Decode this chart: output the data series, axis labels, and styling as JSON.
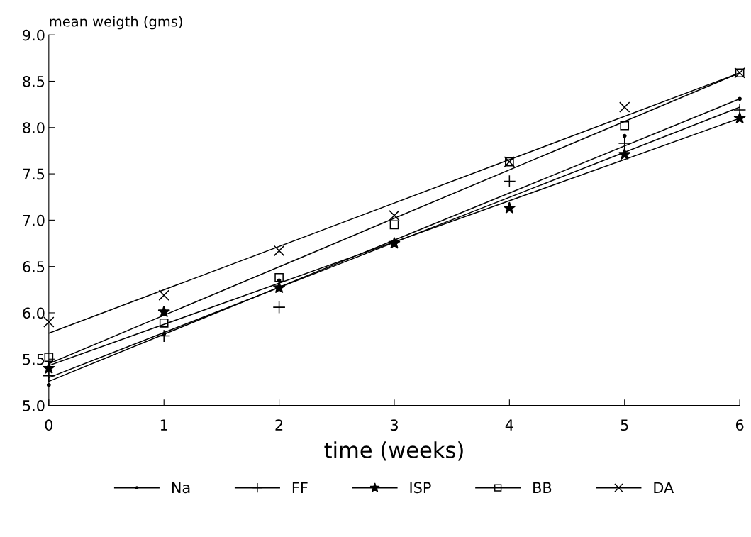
{
  "chart_data": {
    "type": "scatter",
    "xlabel": "time (weeks)",
    "ylabel": "mean weigth (gms)",
    "x": [
      0,
      1,
      2,
      3,
      4,
      5,
      6
    ],
    "xlim": [
      0,
      6
    ],
    "xticks": [
      0,
      1,
      2,
      3,
      4,
      5,
      6
    ],
    "ylim": [
      5,
      9
    ],
    "yticks": [
      {
        "value": 5,
        "label": "5.0"
      },
      {
        "value": 5.5,
        "label": "5.5"
      },
      {
        "value": 6,
        "label": "6.0"
      },
      {
        "value": 6.5,
        "label": "6.5"
      },
      {
        "value": 7,
        "label": "7.0"
      },
      {
        "value": 7.5,
        "label": "7.5"
      },
      {
        "value": 8,
        "label": "8.0"
      },
      {
        "value": 8.5,
        "label": "8.5"
      },
      {
        "value": 9,
        "label": "9.0"
      }
    ],
    "grid": false,
    "legend": "bottom",
    "series": [
      {
        "name": "Na",
        "color": "#000000",
        "marker": "circle",
        "values": [
          5.22,
          5.77,
          6.35,
          null,
          null,
          7.91,
          8.31
        ]
      },
      {
        "name": "FF",
        "color": "#000000",
        "marker": "cross",
        "values": [
          5.32,
          5.75,
          6.06,
          null,
          7.42,
          7.83,
          8.19
        ]
      },
      {
        "name": "ISP",
        "color": "#000000",
        "marker": "star",
        "values": [
          5.4,
          6.01,
          6.27,
          6.75,
          7.13,
          7.71,
          8.1
        ]
      },
      {
        "name": "BB",
        "color": "#000000",
        "marker": "square",
        "values": [
          5.52,
          5.89,
          6.38,
          6.95,
          7.63,
          8.02,
          8.59
        ]
      },
      {
        "name": "DA",
        "color": "#000000",
        "marker": "x",
        "values": [
          5.9,
          6.19,
          6.67,
          7.05,
          7.63,
          8.22,
          8.59
        ]
      },
      {
        "type": "line",
        "color": "#000000",
        "values": [
          5.26,
          null,
          null,
          null,
          null,
          null,
          8.31
        ]
      },
      {
        "type": "line",
        "color": "#000000",
        "values": [
          5.3,
          null,
          null,
          null,
          null,
          null,
          8.22
        ]
      },
      {
        "type": "line",
        "color": "#000000",
        "values": [
          5.43,
          null,
          null,
          null,
          null,
          null,
          8.1
        ]
      },
      {
        "type": "line",
        "color": "#000000",
        "values": [
          5.45,
          null,
          null,
          null,
          null,
          null,
          8.59
        ]
      },
      {
        "type": "line",
        "color": "#000000",
        "values": [
          5.78,
          null,
          null,
          null,
          null,
          null,
          8.59
        ]
      }
    ]
  }
}
